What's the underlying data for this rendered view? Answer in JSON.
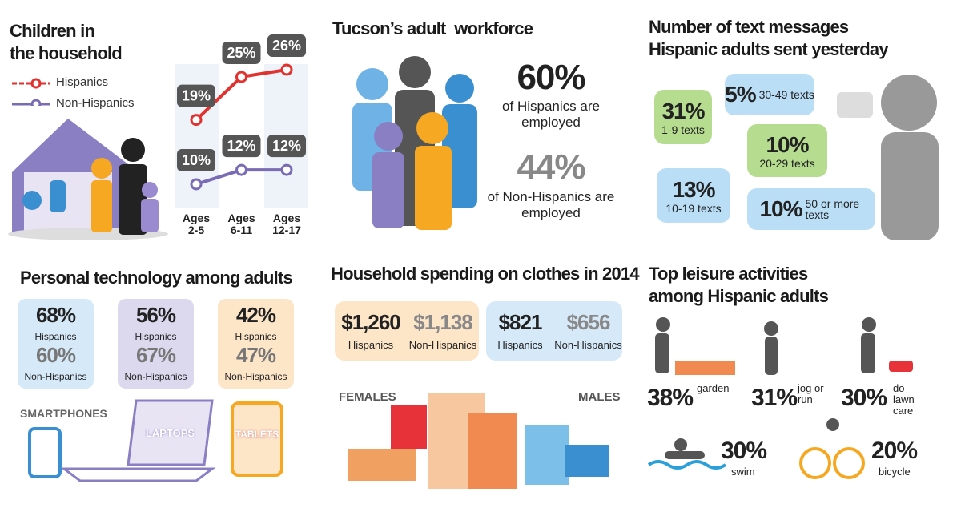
{
  "children": {
    "title": "Children in the household",
    "chart_data": {
      "type": "line",
      "categories": [
        "Ages 2-5",
        "Ages 6-11",
        "Ages 12-17"
      ],
      "series": [
        {
          "name": "Hispanics",
          "color": "#e0322f",
          "values": [
            19,
            25,
            26
          ],
          "value_labels": [
            "19%",
            "25%",
            "26%"
          ]
        },
        {
          "name": "Non-Hispanics",
          "color": "#7a6bb5",
          "values": [
            10,
            12,
            12
          ],
          "value_labels": [
            "10%",
            "12%",
            "12%"
          ]
        }
      ]
    }
  },
  "workforce": {
    "title": "Tucson’s adult  workforce",
    "stats": [
      {
        "value": "60%",
        "label": "of Hispanics are employed"
      },
      {
        "value": "44%",
        "label": "of Non-Hispanics are employed"
      }
    ]
  },
  "texts": {
    "title": "Number of text messages Hispanic adults sent yesterday",
    "bubbles": [
      {
        "value": "31%",
        "label": "1-9 texts"
      },
      {
        "value": "5%",
        "label": "30-49 texts"
      },
      {
        "value": "10%",
        "label": "20-29 texts"
      },
      {
        "value": "13%",
        "label": "10-19 texts"
      },
      {
        "value": "10%",
        "label": "50 or more texts"
      }
    ]
  },
  "technology": {
    "title": "Personal technology among adults",
    "devices": [
      {
        "name": "SMARTPHONES",
        "hispanics": "68%",
        "hispanics_label": "Hispanics",
        "non_hispanics": "60%",
        "non_hispanics_label": "Non-Hispanics"
      },
      {
        "name": "LAPTOPS",
        "hispanics": "56%",
        "hispanics_label": "Hispanics",
        "non_hispanics": "67%",
        "non_hispanics_label": "Non-Hispanics"
      },
      {
        "name": "TABLETS",
        "hispanics": "42%",
        "hispanics_label": "Hispanics",
        "non_hispanics": "47%",
        "non_hispanics_label": "Non-Hispanics"
      }
    ]
  },
  "clothes": {
    "title": "Household spending on clothes in 2014",
    "groups": [
      {
        "name": "FEMALES",
        "hispanics": "$1,260",
        "hispanics_label": "Hispanics",
        "non_hispanics": "$1,138",
        "non_hispanics_label": "Non-Hispanics"
      },
      {
        "name": "MALES",
        "hispanics": "$821",
        "hispanics_label": "Hispanics",
        "non_hispanics": "$656",
        "non_hispanics_label": "Non-Hispanics"
      }
    ]
  },
  "leisure": {
    "title": "Top leisure activities among Hispanic adults",
    "activities": [
      {
        "value": "38%",
        "label": "garden"
      },
      {
        "value": "31%",
        "label": "jog or run"
      },
      {
        "value": "30%",
        "label": "do lawn care"
      },
      {
        "value": "30%",
        "label": "swim"
      },
      {
        "value": "20%",
        "label": "bicycle"
      }
    ]
  }
}
